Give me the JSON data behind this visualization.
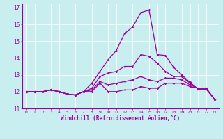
{
  "xlabel": "Windchill (Refroidissement éolien,°C)",
  "background_color": "#c8eef0",
  "line_color": "#990099",
  "grid_color": "#ffffff",
  "xlim": [
    -0.5,
    23.5
  ],
  "ylim": [
    11,
    17.2
  ],
  "yticks": [
    11,
    12,
    13,
    14,
    15,
    16,
    17
  ],
  "xticks": [
    0,
    1,
    2,
    3,
    4,
    5,
    6,
    7,
    8,
    9,
    10,
    11,
    12,
    13,
    14,
    15,
    16,
    17,
    18,
    19,
    20,
    21,
    22,
    23
  ],
  "curves": [
    [
      12.0,
      12.0,
      12.0,
      12.1,
      12.0,
      11.85,
      11.8,
      12.0,
      12.0,
      12.5,
      12.0,
      12.0,
      12.1,
      12.1,
      12.3,
      12.2,
      12.2,
      12.5,
      12.5,
      12.5,
      12.3,
      12.2,
      12.2,
      11.55
    ],
    [
      12.0,
      12.0,
      12.0,
      12.1,
      12.0,
      11.85,
      11.8,
      12.0,
      12.1,
      12.6,
      12.4,
      12.5,
      12.6,
      12.7,
      12.9,
      12.7,
      12.6,
      12.8,
      12.8,
      12.7,
      12.4,
      12.2,
      12.2,
      11.55
    ],
    [
      12.0,
      12.0,
      12.0,
      12.1,
      12.0,
      11.85,
      11.8,
      12.0,
      12.2,
      12.9,
      13.1,
      13.2,
      13.5,
      13.5,
      14.2,
      14.1,
      13.7,
      13.2,
      12.9,
      12.9,
      12.5,
      12.15,
      12.15,
      11.55
    ],
    [
      12.0,
      12.0,
      12.0,
      12.1,
      12.0,
      11.85,
      11.8,
      12.0,
      12.5,
      13.2,
      13.9,
      14.45,
      15.45,
      15.85,
      16.7,
      16.85,
      14.2,
      14.15,
      13.45,
      13.0,
      12.55,
      12.15,
      12.15,
      11.55
    ]
  ]
}
